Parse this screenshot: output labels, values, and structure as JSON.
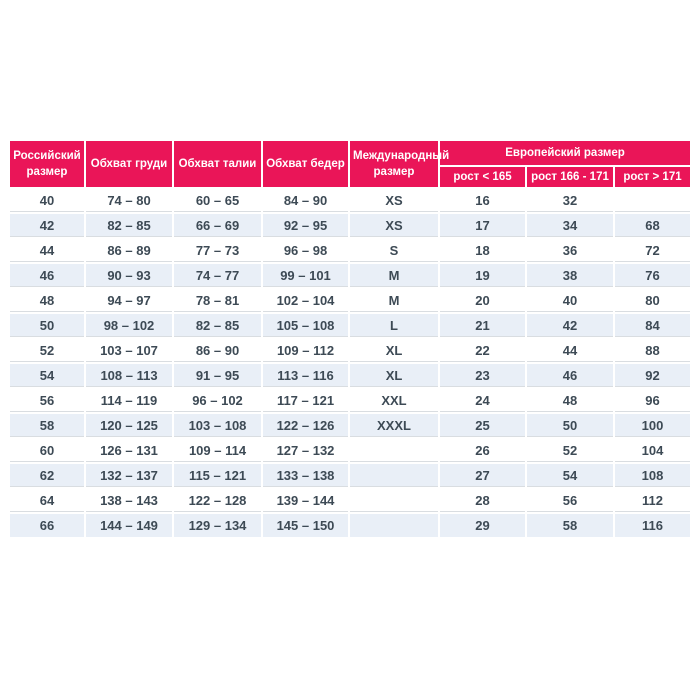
{
  "colors": {
    "header_bg": "#ea1558",
    "header_text": "#ffffff",
    "stripe_bg": "#e9eff7",
    "row_line": "#d9dde1",
    "text": "#3d4a55",
    "background": "#ffffff"
  },
  "chart_data": {
    "type": "table",
    "title": "",
    "header_row_1": [
      "Российский размер",
      "Обхват груди",
      "Обхват талии",
      "Обхват бедер",
      "Международный размер",
      "Европейский размер"
    ],
    "header_row_2": [
      "рост < 165",
      "рост 166 - 171",
      "рост > 171"
    ],
    "european_size_group_span": 3,
    "rows": [
      [
        "40",
        "74 – 80",
        "60 – 65",
        "84 – 90",
        "XS",
        "16",
        "32",
        ""
      ],
      [
        "42",
        "82 – 85",
        "66 – 69",
        "92 – 95",
        "XS",
        "17",
        "34",
        "68"
      ],
      [
        "44",
        "86 – 89",
        "77 – 73",
        "96 – 98",
        "S",
        "18",
        "36",
        "72"
      ],
      [
        "46",
        "90 – 93",
        "74 – 77",
        "99 – 101",
        "M",
        "19",
        "38",
        "76"
      ],
      [
        "48",
        "94 – 97",
        "78 – 81",
        "102 – 104",
        "M",
        "20",
        "40",
        "80"
      ],
      [
        "50",
        "98 – 102",
        "82 – 85",
        "105 – 108",
        "L",
        "21",
        "42",
        "84"
      ],
      [
        "52",
        "103 – 107",
        "86 – 90",
        "109 – 112",
        "XL",
        "22",
        "44",
        "88"
      ],
      [
        "54",
        "108 – 113",
        "91 – 95",
        "113 – 116",
        "XL",
        "23",
        "46",
        "92"
      ],
      [
        "56",
        "114 – 119",
        "96 – 102",
        "117 – 121",
        "XXL",
        "24",
        "48",
        "96"
      ],
      [
        "58",
        "120 – 125",
        "103 – 108",
        "122 – 126",
        "XXXL",
        "25",
        "50",
        "100"
      ],
      [
        "60",
        "126 – 131",
        "109 – 114",
        "127 – 132",
        "",
        "26",
        "52",
        "104"
      ],
      [
        "62",
        "132 – 137",
        "115 – 121",
        "133 – 138",
        "",
        "27",
        "54",
        "108"
      ],
      [
        "64",
        "138 – 143",
        "122 – 128",
        "139 – 144",
        "",
        "28",
        "56",
        "112"
      ],
      [
        "66",
        "144 – 149",
        "129 – 134",
        "145 – 150",
        "",
        "29",
        "58",
        "116"
      ]
    ]
  }
}
